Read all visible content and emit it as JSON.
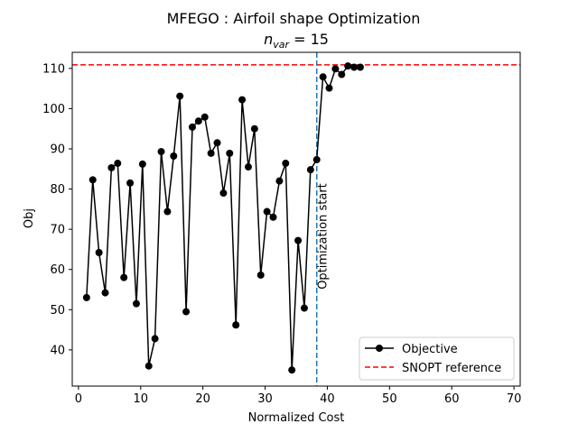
{
  "chart_data": {
    "type": "line",
    "title": "MFEGO : Airfoil shape Optimization",
    "subtitle_base": "n",
    "subtitle_sub": "var",
    "subtitle_rest": " = 15",
    "xlabel": "Normalized Cost",
    "ylabel": "Obj",
    "xlim": [
      -1,
      71
    ],
    "ylim": [
      31,
      114
    ],
    "xticks": [
      0,
      10,
      20,
      30,
      40,
      50,
      60,
      70
    ],
    "yticks": [
      40,
      50,
      60,
      70,
      80,
      90,
      100,
      110
    ],
    "grid": false,
    "legend_position": "lower-right",
    "series": [
      {
        "name": "Objective",
        "color": "#000000",
        "marker": "circle",
        "x": [
          1.3,
          2.3,
          3.3,
          4.3,
          5.3,
          6.3,
          7.3,
          8.3,
          9.3,
          10.3,
          11.3,
          12.3,
          13.3,
          14.3,
          15.3,
          16.3,
          17.3,
          18.3,
          19.3,
          20.3,
          21.3,
          22.3,
          23.3,
          24.3,
          25.3,
          26.3,
          27.3,
          28.3,
          29.3,
          30.3,
          31.3,
          32.3,
          33.3,
          34.3,
          35.3,
          36.3,
          37.3,
          38.3,
          39.3,
          40.3,
          41.3,
          42.3,
          43.3,
          44.3,
          45.3
        ],
        "y": [
          53,
          82.3,
          64.2,
          54.2,
          85.3,
          86.4,
          58,
          81.5,
          51.5,
          86.2,
          36,
          42.8,
          89.3,
          74.4,
          88.2,
          103.1,
          49.5,
          95.4,
          96.9,
          97.9,
          88.9,
          91.5,
          79,
          88.9,
          46.2,
          102.2,
          85.5,
          95,
          58.6,
          74.4,
          73,
          82,
          86.4,
          35,
          67.2,
          50.4,
          84.8,
          87.3,
          107.9,
          105.1,
          109.9,
          108.5,
          110.6,
          110.3,
          110.3
        ]
      },
      {
        "name": "SNOPT reference",
        "color": "#ff0000",
        "style": "dashed",
        "y": 110.9
      }
    ],
    "vline": {
      "x": 38.3,
      "color": "#1f77b4",
      "label": "Optimization start"
    }
  }
}
